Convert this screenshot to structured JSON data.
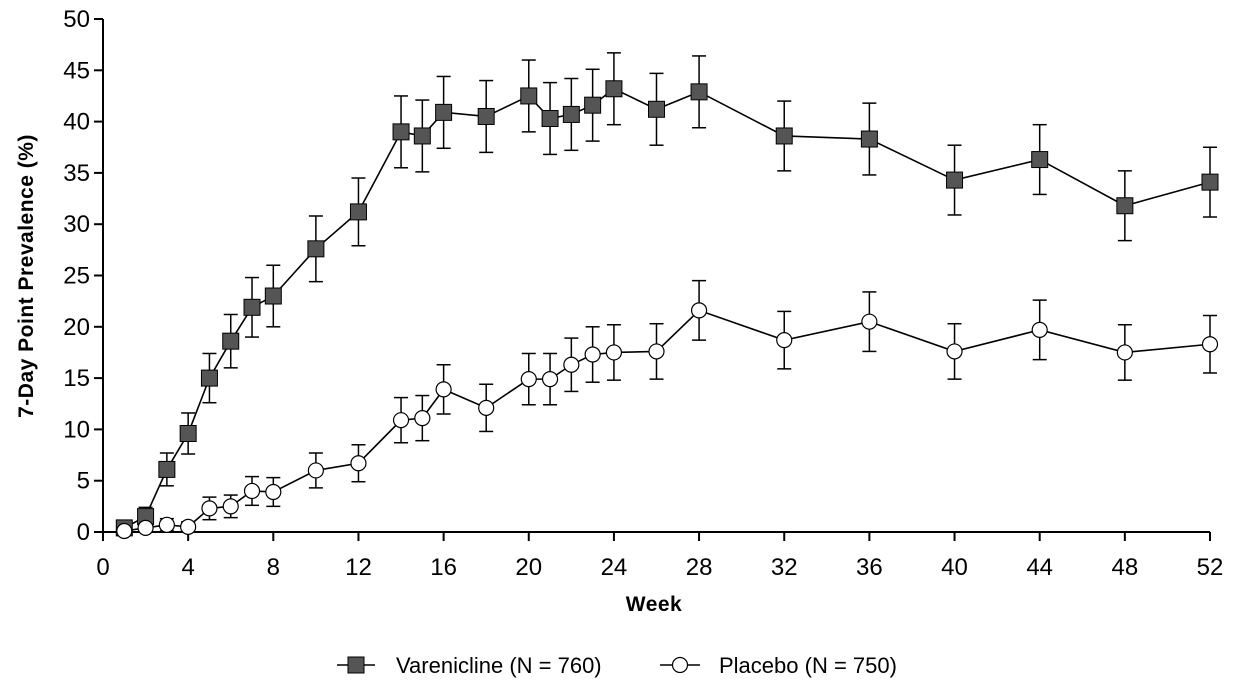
{
  "chart_data": {
    "type": "line",
    "xlabel": "Week",
    "ylabel": "7-Day Point Prevalence (%)",
    "xlim": [
      0,
      52
    ],
    "ylim": [
      0,
      50
    ],
    "x_ticks": [
      0,
      4,
      8,
      12,
      16,
      20,
      24,
      28,
      32,
      36,
      40,
      44,
      48,
      52
    ],
    "y_ticks": [
      0,
      5,
      10,
      15,
      20,
      25,
      30,
      35,
      40,
      45,
      50
    ],
    "grid": false,
    "legend_position": "bottom-center",
    "series": [
      {
        "name": "Varenicline (N = 760)",
        "marker": "filled-square",
        "color": "#555555",
        "x": [
          1,
          2,
          3,
          4,
          5,
          6,
          7,
          8,
          10,
          12,
          14,
          15,
          16,
          18,
          20,
          21,
          22,
          23,
          24,
          26,
          28,
          32,
          36,
          40,
          44,
          48,
          52
        ],
        "y": [
          0.4,
          1.5,
          6.1,
          9.6,
          15.0,
          18.6,
          21.9,
          23.0,
          27.6,
          31.2,
          39.0,
          38.6,
          40.9,
          40.5,
          42.5,
          40.3,
          40.7,
          41.6,
          43.2,
          41.2,
          42.9,
          38.6,
          38.3,
          34.3,
          36.3,
          31.8,
          34.1
        ],
        "err": [
          0.5,
          0.9,
          1.6,
          2.0,
          2.4,
          2.6,
          2.9,
          3.0,
          3.2,
          3.3,
          3.5,
          3.5,
          3.5,
          3.5,
          3.5,
          3.5,
          3.5,
          3.5,
          3.5,
          3.5,
          3.5,
          3.4,
          3.5,
          3.4,
          3.4,
          3.4,
          3.4
        ]
      },
      {
        "name": "Placebo (N = 750)",
        "marker": "open-circle",
        "color": "#ffffff",
        "x": [
          1,
          2,
          3,
          4,
          5,
          6,
          7,
          8,
          10,
          12,
          14,
          15,
          16,
          18,
          20,
          21,
          22,
          23,
          24,
          26,
          28,
          32,
          36,
          40,
          44,
          48,
          52
        ],
        "y": [
          0.1,
          0.4,
          0.7,
          0.5,
          2.3,
          2.5,
          4.0,
          3.9,
          6.0,
          6.7,
          10.9,
          11.1,
          13.9,
          12.1,
          14.9,
          14.9,
          16.3,
          17.3,
          17.5,
          17.6,
          21.6,
          18.7,
          20.5,
          17.6,
          19.7,
          17.5,
          18.3
        ],
        "err": [
          0.2,
          0.4,
          0.6,
          0.5,
          1.1,
          1.1,
          1.4,
          1.4,
          1.7,
          1.8,
          2.2,
          2.2,
          2.4,
          2.3,
          2.5,
          2.5,
          2.6,
          2.7,
          2.7,
          2.7,
          2.9,
          2.8,
          2.9,
          2.7,
          2.9,
          2.7,
          2.8
        ]
      }
    ]
  }
}
